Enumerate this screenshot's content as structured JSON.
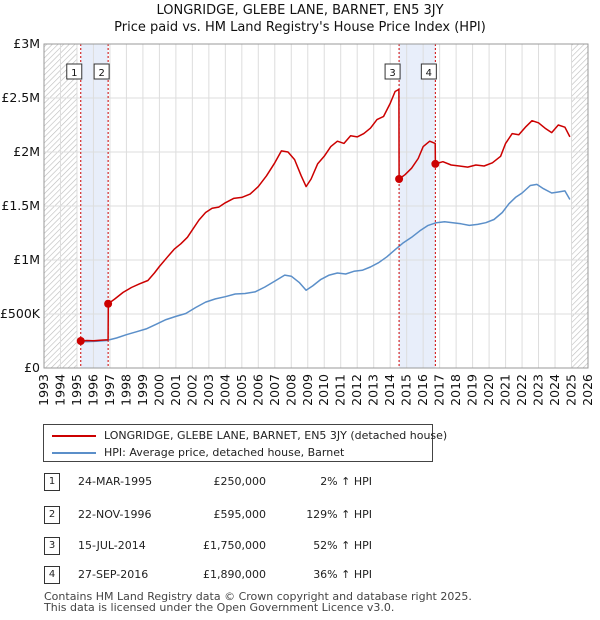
{
  "chart_data": {
    "type": "line",
    "title": "LONGRIDGE, GLEBE LANE, BARNET, EN5 3JY",
    "subtitle": "Price paid vs. HM Land Registry's House Price Index (HPI)",
    "xlabel": "",
    "ylabel": "",
    "xlim": [
      1993,
      2026
    ],
    "ylim": [
      0,
      3000000
    ],
    "x_ticks": [
      "1993",
      "1994",
      "1995",
      "1996",
      "1997",
      "1998",
      "1999",
      "2000",
      "2001",
      "2002",
      "2003",
      "2004",
      "2005",
      "2006",
      "2007",
      "2008",
      "2009",
      "2010",
      "2011",
      "2012",
      "2013",
      "2014",
      "2015",
      "2016",
      "2017",
      "2018",
      "2019",
      "2020",
      "2021",
      "2022",
      "2023",
      "2024",
      "2025",
      "2026"
    ],
    "y_ticks": [
      {
        "value": 0,
        "label": "£0"
      },
      {
        "value": 500000,
        "label": "£500K"
      },
      {
        "value": 1000000,
        "label": "£1M"
      },
      {
        "value": 1500000,
        "label": "£1.5M"
      },
      {
        "value": 2000000,
        "label": "£2M"
      },
      {
        "value": 2500000,
        "label": "£2.5M"
      },
      {
        "value": 3000000,
        "label": "£3M"
      }
    ],
    "grid": true,
    "series": [
      {
        "name": "LONGRIDGE, GLEBE LANE, BARNET, EN5 3JY (detached house)",
        "color": "#cc0000",
        "points": [
          [
            1995.23,
            250000
          ],
          [
            1995.6,
            255000
          ],
          [
            1996.0,
            252000
          ],
          [
            1996.5,
            258000
          ],
          [
            1996.89,
            262000
          ],
          [
            1996.9,
            595000
          ],
          [
            1997.3,
            640000
          ],
          [
            1997.8,
            700000
          ],
          [
            1998.3,
            745000
          ],
          [
            1998.8,
            780000
          ],
          [
            1999.3,
            810000
          ],
          [
            1999.7,
            880000
          ],
          [
            2000.0,
            940000
          ],
          [
            2000.5,
            1030000
          ],
          [
            2000.9,
            1100000
          ],
          [
            2001.3,
            1150000
          ],
          [
            2001.7,
            1210000
          ],
          [
            2002.0,
            1280000
          ],
          [
            2002.4,
            1370000
          ],
          [
            2002.8,
            1440000
          ],
          [
            2003.2,
            1480000
          ],
          [
            2003.6,
            1490000
          ],
          [
            2004.0,
            1530000
          ],
          [
            2004.5,
            1570000
          ],
          [
            2005.0,
            1580000
          ],
          [
            2005.5,
            1610000
          ],
          [
            2006.0,
            1680000
          ],
          [
            2006.5,
            1780000
          ],
          [
            2007.0,
            1900000
          ],
          [
            2007.4,
            2010000
          ],
          [
            2007.8,
            2000000
          ],
          [
            2008.2,
            1930000
          ],
          [
            2008.6,
            1780000
          ],
          [
            2008.9,
            1680000
          ],
          [
            2009.2,
            1750000
          ],
          [
            2009.6,
            1890000
          ],
          [
            2010.0,
            1960000
          ],
          [
            2010.4,
            2050000
          ],
          [
            2010.8,
            2100000
          ],
          [
            2011.2,
            2080000
          ],
          [
            2011.6,
            2150000
          ],
          [
            2012.0,
            2140000
          ],
          [
            2012.4,
            2170000
          ],
          [
            2012.8,
            2220000
          ],
          [
            2013.2,
            2300000
          ],
          [
            2013.6,
            2330000
          ],
          [
            2014.0,
            2450000
          ],
          [
            2014.3,
            2560000
          ],
          [
            2014.53,
            2580000
          ],
          [
            2014.54,
            1750000
          ],
          [
            2014.9,
            1790000
          ],
          [
            2015.3,
            1850000
          ],
          [
            2015.7,
            1940000
          ],
          [
            2016.0,
            2050000
          ],
          [
            2016.4,
            2100000
          ],
          [
            2016.73,
            2080000
          ],
          [
            2016.74,
            1890000
          ],
          [
            2017.2,
            1910000
          ],
          [
            2017.7,
            1880000
          ],
          [
            2018.2,
            1870000
          ],
          [
            2018.7,
            1860000
          ],
          [
            2019.2,
            1880000
          ],
          [
            2019.7,
            1870000
          ],
          [
            2020.2,
            1900000
          ],
          [
            2020.7,
            1960000
          ],
          [
            2021.0,
            2080000
          ],
          [
            2021.4,
            2170000
          ],
          [
            2021.8,
            2160000
          ],
          [
            2022.2,
            2230000
          ],
          [
            2022.6,
            2290000
          ],
          [
            2023.0,
            2270000
          ],
          [
            2023.4,
            2220000
          ],
          [
            2023.8,
            2180000
          ],
          [
            2024.2,
            2250000
          ],
          [
            2024.6,
            2230000
          ],
          [
            2024.9,
            2140000
          ]
        ]
      },
      {
        "name": "HPI: Average price, detached house, Barnet",
        "color": "#5b8fc9",
        "points": [
          [
            1995.0,
            245000
          ],
          [
            1995.6,
            244000
          ],
          [
            1996.2,
            247000
          ],
          [
            1996.8,
            255000
          ],
          [
            1997.4,
            278000
          ],
          [
            1998.0,
            308000
          ],
          [
            1998.6,
            335000
          ],
          [
            1999.2,
            362000
          ],
          [
            1999.8,
            405000
          ],
          [
            2000.4,
            448000
          ],
          [
            2001.0,
            478000
          ],
          [
            2001.6,
            505000
          ],
          [
            2002.2,
            560000
          ],
          [
            2002.8,
            610000
          ],
          [
            2003.4,
            640000
          ],
          [
            2004.0,
            660000
          ],
          [
            2004.6,
            685000
          ],
          [
            2005.2,
            690000
          ],
          [
            2005.8,
            705000
          ],
          [
            2006.4,
            750000
          ],
          [
            2007.0,
            805000
          ],
          [
            2007.6,
            860000
          ],
          [
            2008.0,
            850000
          ],
          [
            2008.5,
            790000
          ],
          [
            2008.9,
            720000
          ],
          [
            2009.3,
            760000
          ],
          [
            2009.8,
            820000
          ],
          [
            2010.3,
            860000
          ],
          [
            2010.8,
            880000
          ],
          [
            2011.3,
            870000
          ],
          [
            2011.8,
            895000
          ],
          [
            2012.3,
            905000
          ],
          [
            2012.8,
            935000
          ],
          [
            2013.3,
            975000
          ],
          [
            2013.8,
            1030000
          ],
          [
            2014.3,
            1095000
          ],
          [
            2014.8,
            1160000
          ],
          [
            2015.3,
            1210000
          ],
          [
            2015.8,
            1270000
          ],
          [
            2016.3,
            1320000
          ],
          [
            2016.8,
            1345000
          ],
          [
            2017.3,
            1355000
          ],
          [
            2017.8,
            1345000
          ],
          [
            2018.3,
            1335000
          ],
          [
            2018.8,
            1320000
          ],
          [
            2019.3,
            1330000
          ],
          [
            2019.8,
            1345000
          ],
          [
            2020.3,
            1375000
          ],
          [
            2020.8,
            1440000
          ],
          [
            2021.2,
            1520000
          ],
          [
            2021.6,
            1580000
          ],
          [
            2022.0,
            1620000
          ],
          [
            2022.5,
            1690000
          ],
          [
            2022.9,
            1700000
          ],
          [
            2023.3,
            1660000
          ],
          [
            2023.8,
            1620000
          ],
          [
            2024.2,
            1630000
          ],
          [
            2024.6,
            1640000
          ],
          [
            2024.9,
            1560000
          ]
        ]
      }
    ],
    "sales": [
      {
        "label": "1",
        "x": 1995.23,
        "price": 250000
      },
      {
        "label": "2",
        "x": 1996.89,
        "price": 595000
      },
      {
        "label": "3",
        "x": 2014.54,
        "price": 1750000
      },
      {
        "label": "4",
        "x": 2016.74,
        "price": 1890000
      }
    ],
    "shaded_periods": [
      [
        1995.23,
        1996.89
      ],
      [
        2014.54,
        2016.74
      ]
    ],
    "hatched_regions": [
      [
        1993,
        1995.0
      ],
      [
        2025.0,
        2026
      ]
    ]
  },
  "legend": {
    "red_label": "LONGRIDGE, GLEBE LANE, BARNET, EN5 3JY (detached house)",
    "blue_label": "HPI: Average price, detached house, Barnet"
  },
  "transactions": [
    {
      "num": "1",
      "date": "24-MAR-1995",
      "price": "£250,000",
      "hpi": "2% ↑ HPI"
    },
    {
      "num": "2",
      "date": "22-NOV-1996",
      "price": "£595,000",
      "hpi": "129% ↑ HPI"
    },
    {
      "num": "3",
      "date": "15-JUL-2014",
      "price": "£1,750,000",
      "hpi": "52% ↑ HPI"
    },
    {
      "num": "4",
      "date": "27-SEP-2016",
      "price": "£1,890,000",
      "hpi": "36% ↑ HPI"
    }
  ],
  "footer": {
    "line1": "Contains HM Land Registry data © Crown copyright and database right 2025.",
    "line2": "This data is licensed under the Open Government Licence v3.0."
  },
  "colors": {
    "red": "#cc0000",
    "blue": "#5b8fc9",
    "shade": "#e8eefa",
    "grid": "#dddddd"
  }
}
